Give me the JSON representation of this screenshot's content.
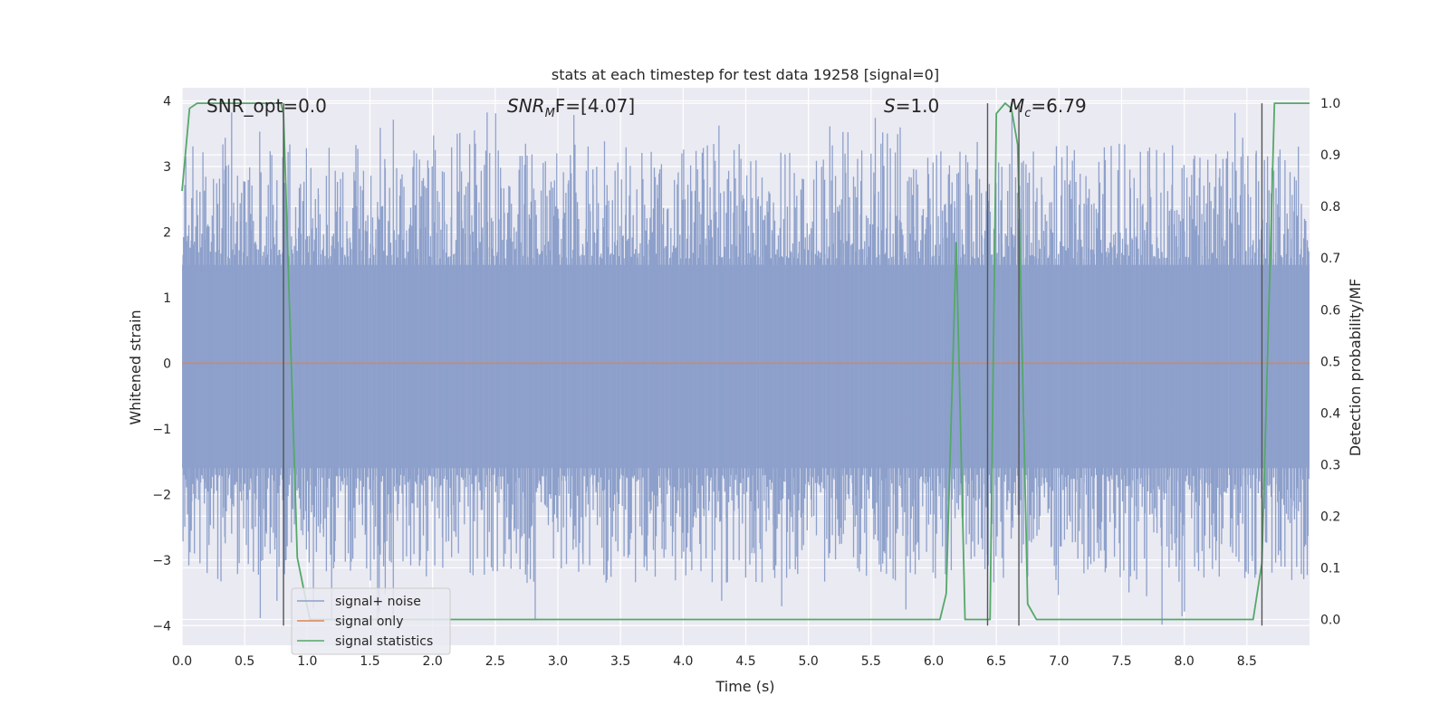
{
  "chart_data": {
    "type": "line",
    "title": "stats at each timestep for test data 19258 [signal=0]",
    "xlabel": "Time (s)",
    "ylabel_left": "Whitened strain",
    "ylabel_right": "Detection probability/MF",
    "xlim": [
      0.0,
      9.0
    ],
    "ylim_left": [
      -4.3,
      4.2
    ],
    "ylim_right": [
      -0.05,
      1.03
    ],
    "grid": true,
    "legend_position": "lower-left",
    "x_ticks": [
      "0.0",
      "0.5",
      "1.0",
      "1.5",
      "2.0",
      "2.5",
      "3.0",
      "3.5",
      "4.0",
      "4.5",
      "5.0",
      "5.5",
      "6.0",
      "6.5",
      "7.0",
      "7.5",
      "8.0",
      "8.5"
    ],
    "y_ticks_left": [
      "−4",
      "−3",
      "−2",
      "−1",
      "0",
      "1",
      "2",
      "3",
      "4"
    ],
    "y_ticks_right": [
      "0.0",
      "0.1",
      "0.2",
      "0.3",
      "0.4",
      "0.5",
      "0.6",
      "0.7",
      "0.8",
      "0.9",
      "1.0"
    ],
    "annotations": [
      {
        "label": "SNR_opt=0.0"
      },
      {
        "label": "SNR",
        "sub": "M",
        "rest": "F=[4.07]"
      },
      {
        "label": "S",
        "rest": "=1.0"
      },
      {
        "label": "M",
        "sub": "c",
        "rest": "=6.79"
      }
    ],
    "series": [
      {
        "name": "signal+ noise",
        "color": "#8da0cb",
        "kind": "noise",
        "band_core": [
          -1.6,
          1.5
        ],
        "extremes": [
          -4.05,
          3.85
        ]
      },
      {
        "name": "signal only",
        "color": "#dd8452",
        "x": [
          0.0,
          9.0
        ],
        "y": [
          0.0,
          0.0
        ]
      },
      {
        "name": "signal statistics",
        "color": "#55a868",
        "axis": "right",
        "x": [
          0.0,
          0.06,
          0.12,
          0.79,
          0.81,
          0.92,
          1.02,
          6.05,
          6.1,
          6.18,
          6.25,
          6.37,
          6.45,
          6.5,
          6.57,
          6.62,
          6.67,
          6.75,
          6.82,
          8.55,
          8.62,
          8.72,
          9.0
        ],
        "y": [
          0.83,
          0.99,
          1.0,
          1.0,
          0.98,
          0.12,
          0.0,
          0.0,
          0.05,
          0.73,
          0.0,
          0.0,
          0.0,
          0.98,
          1.0,
          0.99,
          0.92,
          0.03,
          0.0,
          0.0,
          0.11,
          1.0,
          1.0
        ]
      }
    ],
    "vertical_lines": [
      0.81,
      6.43,
      6.68,
      8.62
    ]
  }
}
